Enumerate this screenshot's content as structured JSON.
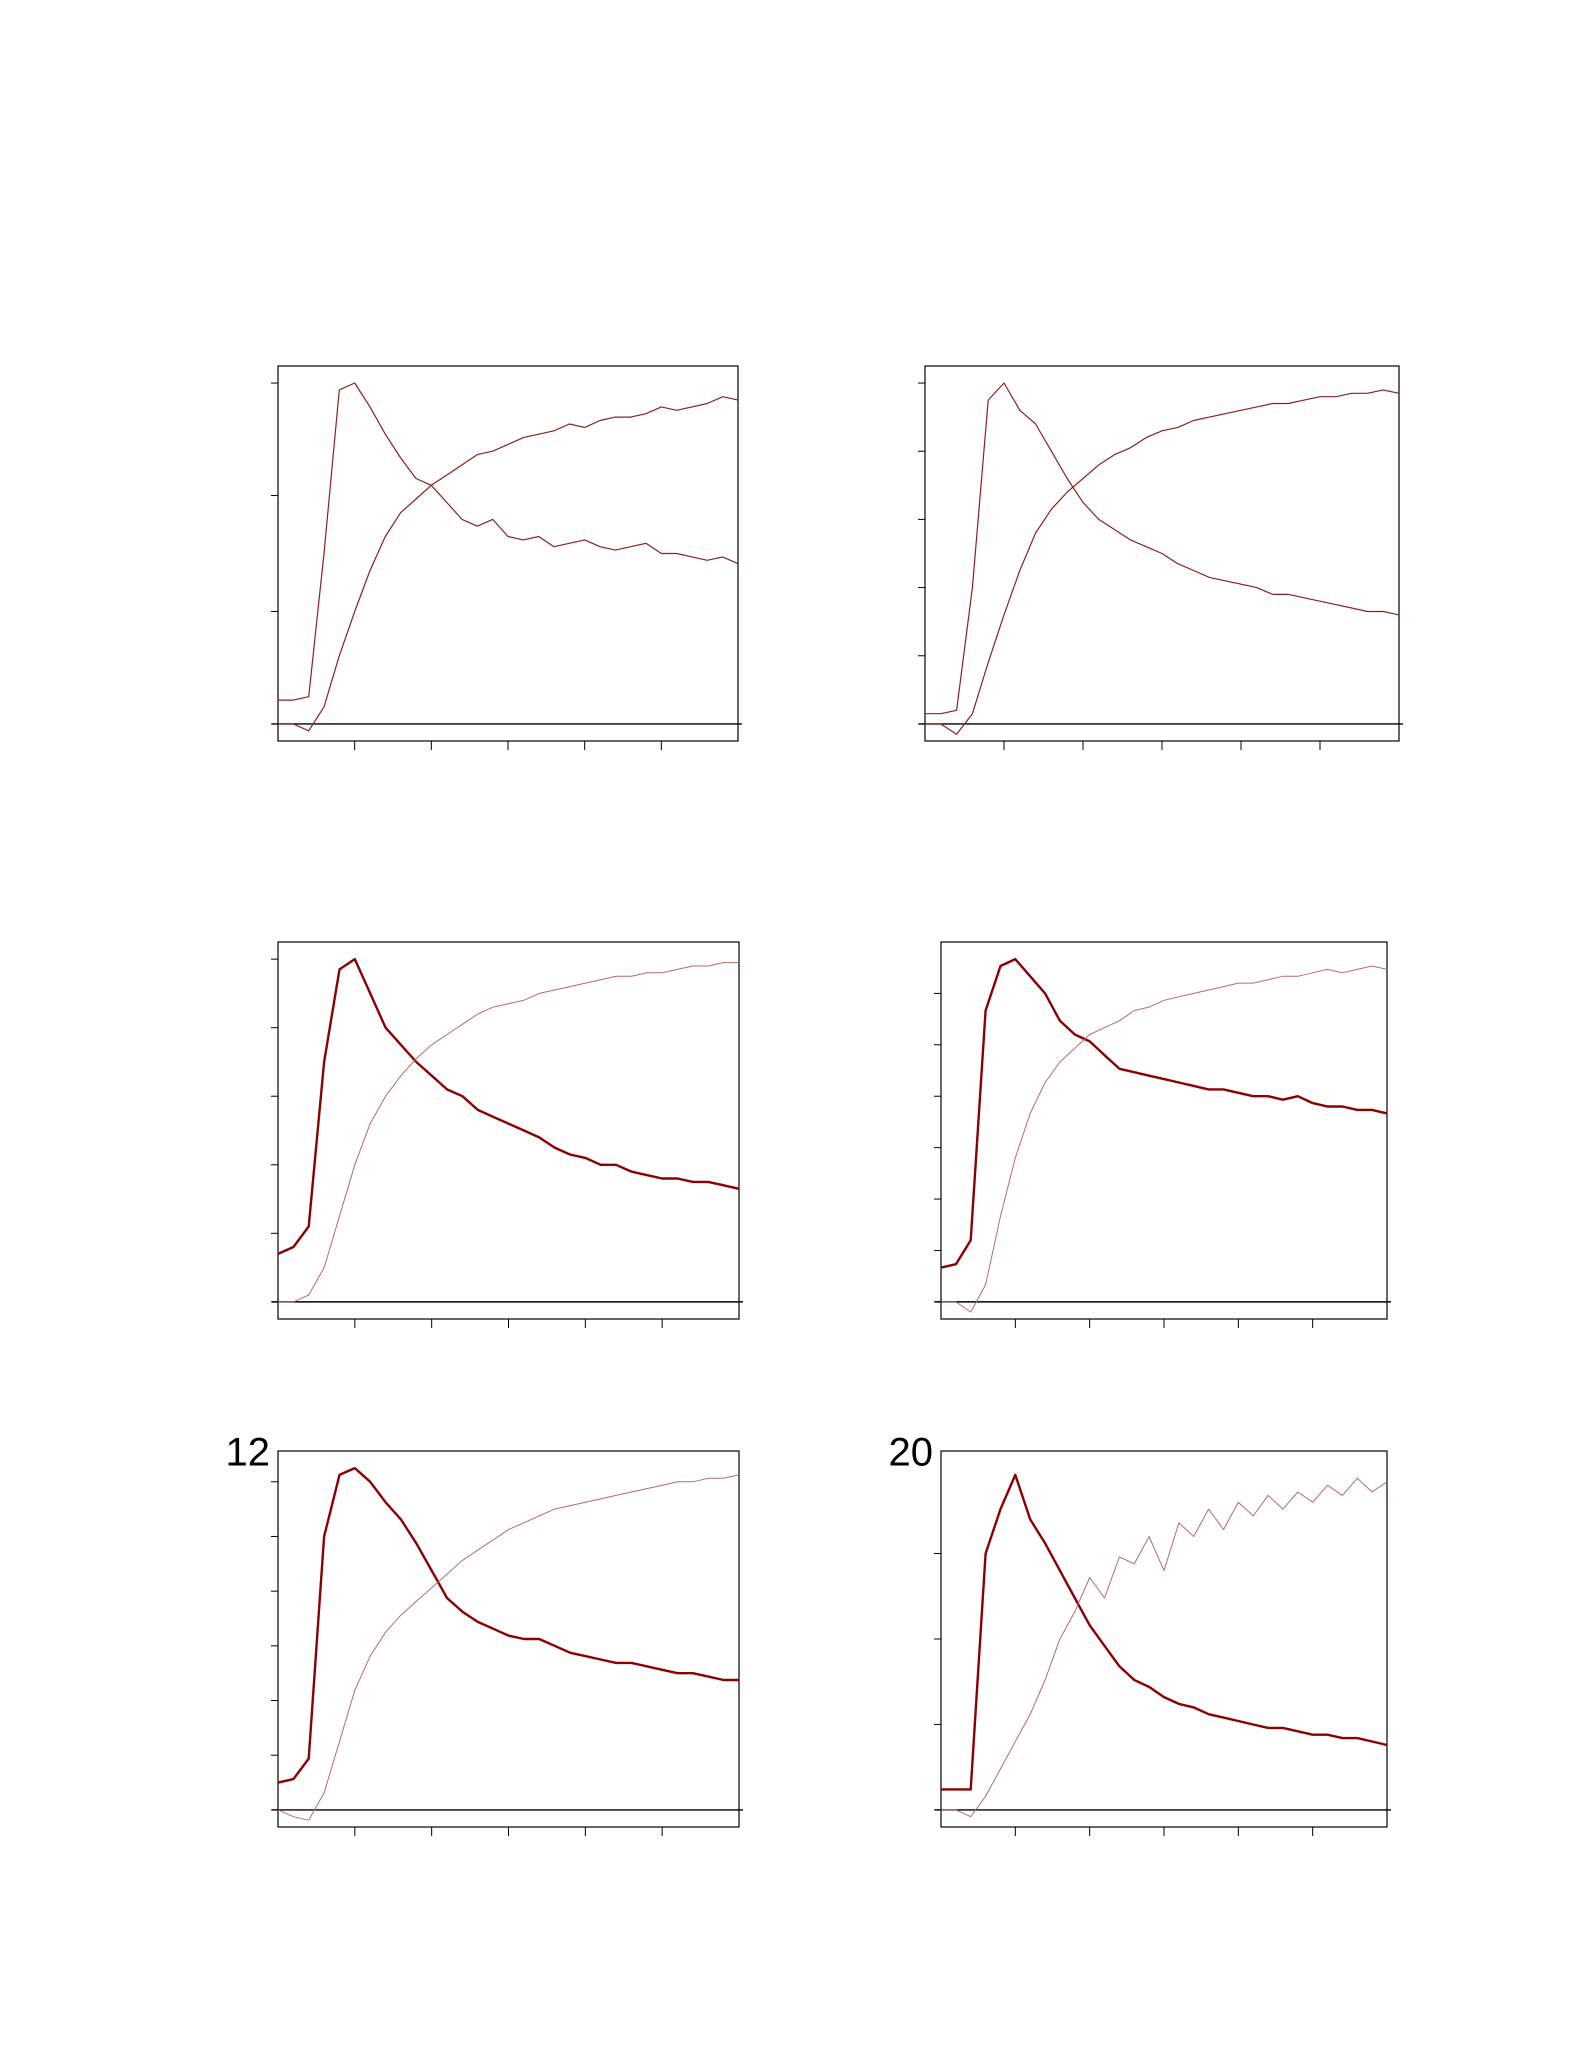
{
  "chart_data": [
    {
      "type": "line",
      "x": [
        0,
        1,
        2,
        3,
        4,
        5,
        6,
        7,
        8,
        9,
        10,
        11,
        12,
        13,
        14,
        15,
        16,
        17,
        18,
        19,
        20,
        21,
        22,
        23,
        24,
        25,
        26,
        27,
        28,
        29,
        30
      ],
      "xlim": [
        0,
        30
      ],
      "xticks": [
        5,
        10,
        15,
        20,
        25
      ],
      "ylim": [
        -0.05,
        1.05
      ],
      "yticks": [
        0,
        0.33,
        0.67,
        1
      ],
      "series": [
        {
          "color": "#8b2020",
          "values": [
            0.07,
            0.07,
            0.08,
            0.5,
            0.98,
            1.0,
            0.93,
            0.85,
            0.78,
            0.72,
            0.7,
            0.65,
            0.6,
            0.58,
            0.6,
            0.55,
            0.54,
            0.55,
            0.52,
            0.53,
            0.54,
            0.52,
            0.51,
            0.52,
            0.53,
            0.5,
            0.5,
            0.49,
            0.48,
            0.49,
            0.47
          ]
        },
        {
          "color": "#8b2020",
          "values": [
            0.0,
            0.0,
            -0.02,
            0.05,
            0.2,
            0.33,
            0.45,
            0.55,
            0.62,
            0.66,
            0.7,
            0.73,
            0.76,
            0.79,
            0.8,
            0.82,
            0.84,
            0.85,
            0.86,
            0.88,
            0.87,
            0.89,
            0.9,
            0.9,
            0.91,
            0.93,
            0.92,
            0.93,
            0.94,
            0.96,
            0.95
          ]
        }
      ]
    },
    {
      "type": "line",
      "x": [
        0,
        1,
        2,
        3,
        4,
        5,
        6,
        7,
        8,
        9,
        10,
        11,
        12,
        13,
        14,
        15,
        16,
        17,
        18,
        19,
        20,
        21,
        22,
        23,
        24,
        25,
        26,
        27,
        28,
        29,
        30
      ],
      "xlim": [
        0,
        30
      ],
      "xticks": [
        5,
        10,
        15,
        20,
        25
      ],
      "ylim": [
        -0.05,
        1.05
      ],
      "yticks": [
        0,
        0.2,
        0.4,
        0.6,
        0.8,
        1
      ],
      "series": [
        {
          "color": "#8b2020",
          "values": [
            0.03,
            0.03,
            0.04,
            0.4,
            0.95,
            1.0,
            0.92,
            0.88,
            0.8,
            0.72,
            0.65,
            0.6,
            0.57,
            0.54,
            0.52,
            0.5,
            0.47,
            0.45,
            0.43,
            0.42,
            0.41,
            0.4,
            0.38,
            0.38,
            0.37,
            0.36,
            0.35,
            0.34,
            0.33,
            0.33,
            0.32
          ]
        },
        {
          "color": "#8b2020",
          "values": [
            0.0,
            0.0,
            -0.03,
            0.03,
            0.18,
            0.32,
            0.45,
            0.56,
            0.63,
            0.68,
            0.72,
            0.76,
            0.79,
            0.81,
            0.84,
            0.86,
            0.87,
            0.89,
            0.9,
            0.91,
            0.92,
            0.93,
            0.94,
            0.94,
            0.95,
            0.96,
            0.96,
            0.97,
            0.97,
            0.98,
            0.97
          ]
        }
      ]
    },
    {
      "type": "line",
      "x": [
        0,
        1,
        2,
        3,
        4,
        5,
        6,
        7,
        8,
        9,
        10,
        11,
        12,
        13,
        14,
        15,
        16,
        17,
        18,
        19,
        20,
        21,
        22,
        23,
        24,
        25,
        26,
        27,
        28,
        29,
        30
      ],
      "xlim": [
        0,
        30
      ],
      "xticks": [
        5,
        10,
        15,
        20,
        25
      ],
      "ylim": [
        -0.05,
        1.05
      ],
      "yticks": [
        0,
        0.2,
        0.4,
        0.6,
        0.8,
        1
      ],
      "series": [
        {
          "color": "#8b0000",
          "values": [
            0.14,
            0.16,
            0.22,
            0.7,
            0.97,
            1.0,
            0.9,
            0.8,
            0.75,
            0.7,
            0.66,
            0.62,
            0.6,
            0.56,
            0.54,
            0.52,
            0.5,
            0.48,
            0.45,
            0.43,
            0.42,
            0.4,
            0.4,
            0.38,
            0.37,
            0.36,
            0.36,
            0.35,
            0.35,
            0.34,
            0.33
          ]
        },
        {
          "color": "#b86a6a",
          "values": [
            0.0,
            0.0,
            0.02,
            0.1,
            0.25,
            0.4,
            0.52,
            0.6,
            0.66,
            0.71,
            0.75,
            0.78,
            0.81,
            0.84,
            0.86,
            0.87,
            0.88,
            0.9,
            0.91,
            0.92,
            0.93,
            0.94,
            0.95,
            0.95,
            0.96,
            0.96,
            0.97,
            0.98,
            0.98,
            0.99,
            0.99
          ]
        }
      ]
    },
    {
      "type": "line",
      "x": [
        0,
        1,
        2,
        3,
        4,
        5,
        6,
        7,
        8,
        9,
        10,
        11,
        12,
        13,
        14,
        15,
        16,
        17,
        18,
        19,
        20,
        21,
        22,
        23,
        24,
        25,
        26,
        27,
        28,
        29,
        30
      ],
      "xlim": [
        0,
        30
      ],
      "xticks": [
        5,
        10,
        15,
        20,
        25
      ],
      "ylim": [
        -0.05,
        1.05
      ],
      "yticks": [
        0,
        0.15,
        0.3,
        0.45,
        0.6,
        0.75,
        0.9
      ],
      "series": [
        {
          "color": "#8b0000",
          "values": [
            0.1,
            0.11,
            0.18,
            0.85,
            0.98,
            1.0,
            0.95,
            0.9,
            0.82,
            0.78,
            0.76,
            0.72,
            0.68,
            0.67,
            0.66,
            0.65,
            0.64,
            0.63,
            0.62,
            0.62,
            0.61,
            0.6,
            0.6,
            0.59,
            0.6,
            0.58,
            0.57,
            0.57,
            0.56,
            0.56,
            0.55
          ]
        },
        {
          "color": "#b86a6a",
          "values": [
            0.0,
            0.0,
            -0.03,
            0.05,
            0.25,
            0.42,
            0.55,
            0.64,
            0.7,
            0.74,
            0.78,
            0.8,
            0.82,
            0.85,
            0.86,
            0.88,
            0.89,
            0.9,
            0.91,
            0.92,
            0.93,
            0.93,
            0.94,
            0.95,
            0.95,
            0.96,
            0.97,
            0.96,
            0.97,
            0.98,
            0.97
          ]
        }
      ]
    },
    {
      "type": "line",
      "panel_label": "12",
      "x": [
        0,
        1,
        2,
        3,
        4,
        5,
        6,
        7,
        8,
        9,
        10,
        11,
        12,
        13,
        14,
        15,
        16,
        17,
        18,
        19,
        20,
        21,
        22,
        23,
        24,
        25,
        26,
        27,
        28,
        29,
        30
      ],
      "xlim": [
        0,
        30
      ],
      "xticks": [
        5,
        10,
        15,
        20,
        25
      ],
      "ylim": [
        -0.05,
        1.05
      ],
      "yticks": [
        0,
        0.16,
        0.32,
        0.48,
        0.64,
        0.8,
        0.96
      ],
      "series": [
        {
          "color": "#8b0000",
          "values": [
            0.08,
            0.09,
            0.15,
            0.8,
            0.98,
            1.0,
            0.96,
            0.9,
            0.85,
            0.78,
            0.7,
            0.62,
            0.58,
            0.55,
            0.53,
            0.51,
            0.5,
            0.5,
            0.48,
            0.46,
            0.45,
            0.44,
            0.43,
            0.43,
            0.42,
            0.41,
            0.4,
            0.4,
            0.39,
            0.38,
            0.38
          ]
        },
        {
          "color": "#b86a6a",
          "values": [
            0.0,
            -0.02,
            -0.03,
            0.05,
            0.2,
            0.35,
            0.45,
            0.52,
            0.57,
            0.61,
            0.65,
            0.69,
            0.73,
            0.76,
            0.79,
            0.82,
            0.84,
            0.86,
            0.88,
            0.89,
            0.9,
            0.91,
            0.92,
            0.93,
            0.94,
            0.95,
            0.96,
            0.96,
            0.97,
            0.97,
            0.98
          ]
        }
      ]
    },
    {
      "type": "line",
      "panel_label": "20",
      "x": [
        0,
        1,
        2,
        3,
        4,
        5,
        6,
        7,
        8,
        9,
        10,
        11,
        12,
        13,
        14,
        15,
        16,
        17,
        18,
        19,
        20,
        21,
        22,
        23,
        24,
        25,
        26,
        27,
        28,
        29,
        30
      ],
      "xlim": [
        0,
        30
      ],
      "xticks": [
        5,
        10,
        15,
        20,
        25
      ],
      "ylim": [
        -0.05,
        1.05
      ],
      "yticks": [
        0,
        0.25,
        0.5,
        0.75
      ],
      "series": [
        {
          "color": "#8b0000",
          "values": [
            0.06,
            0.06,
            0.06,
            0.75,
            0.88,
            0.98,
            0.85,
            0.78,
            0.7,
            0.62,
            0.54,
            0.48,
            0.42,
            0.38,
            0.36,
            0.33,
            0.31,
            0.3,
            0.28,
            0.27,
            0.26,
            0.25,
            0.24,
            0.24,
            0.23,
            0.22,
            0.22,
            0.21,
            0.21,
            0.2,
            0.19
          ]
        },
        {
          "color": "#b86a6a",
          "values": [
            0.0,
            0.0,
            -0.02,
            0.04,
            0.12,
            0.2,
            0.28,
            0.38,
            0.5,
            0.58,
            0.68,
            0.62,
            0.74,
            0.72,
            0.8,
            0.7,
            0.84,
            0.8,
            0.88,
            0.82,
            0.9,
            0.86,
            0.92,
            0.88,
            0.93,
            0.9,
            0.95,
            0.92,
            0.97,
            0.93,
            0.96
          ]
        }
      ]
    }
  ]
}
